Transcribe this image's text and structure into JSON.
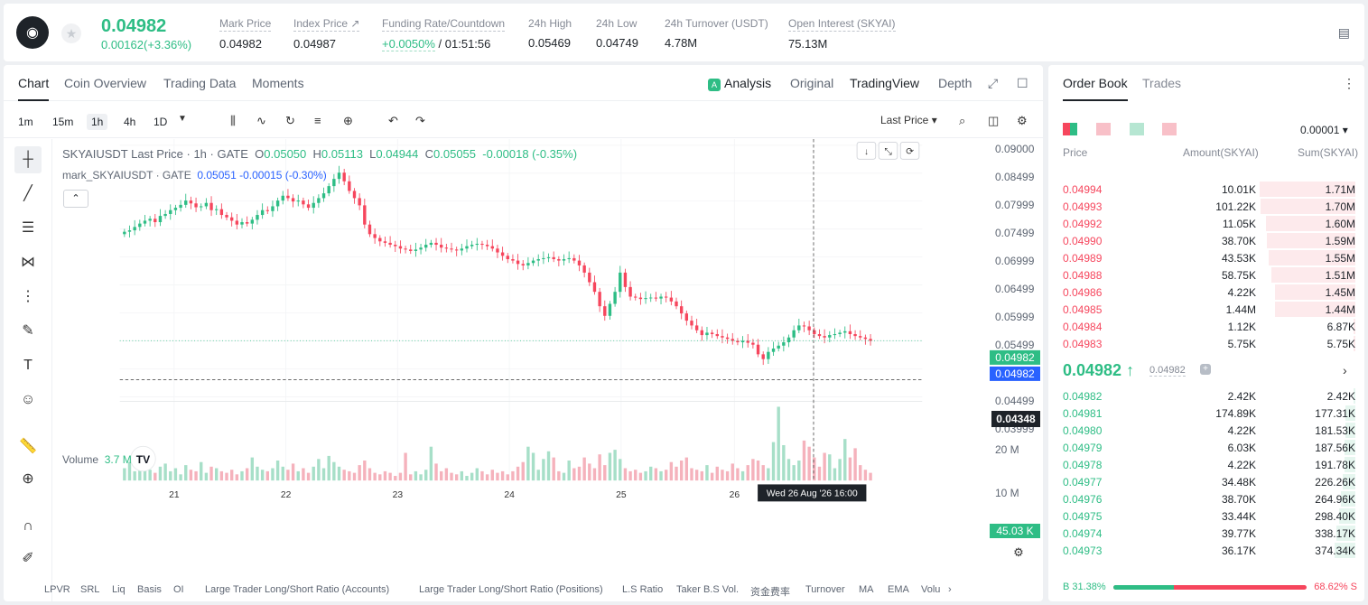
{
  "header": {
    "last_price": "0.04982",
    "change": "0.00162(+3.36%)",
    "stats": [
      {
        "label": "Mark Price",
        "value": "0.04982"
      },
      {
        "label": "Index Price ↗",
        "value": "0.04987"
      },
      {
        "label": "Funding Rate/Countdown",
        "rate": "+0.0050%",
        "countdown": "/ 01:51:56"
      },
      {
        "label": "24h High",
        "value": "0.05469"
      },
      {
        "label": "24h Low",
        "value": "0.04749"
      },
      {
        "label": "24h Turnover (USDT)",
        "value": "4.78M"
      },
      {
        "label": "Open Interest (SKYAI)",
        "value": "75.13M"
      }
    ]
  },
  "chart_tabs": [
    "Chart",
    "Coin Overview",
    "Trading Data",
    "Moments"
  ],
  "chart_modes": [
    "Analysis",
    "Original",
    "TradingView",
    "Depth"
  ],
  "timeframes": [
    "1m",
    "15m",
    "1h",
    "4h",
    "1D"
  ],
  "toolbar_right": "Last Price",
  "legend": {
    "symbol": "SKYAIUSDT Last Price · 1h · GATE",
    "o_label": "O",
    "o": "0.05050",
    "h_label": "H",
    "h": "0.05113",
    "l_label": "L",
    "l": "0.04944",
    "c_label": "C",
    "c": "0.05055",
    "chg": "-0.00018 (-0.35%)",
    "mark": "mark_SKYAIUSDT · GATE",
    "mark_vals": "0.05051 -0.00015 (-0.30%)"
  },
  "volume_legend": {
    "label": "Volume",
    "value": "3.7 M"
  },
  "price_axis": [
    "0.09000",
    "0.08499",
    "0.07999",
    "0.07499",
    "0.06999",
    "0.06499",
    "0.05999",
    "0.05499",
    "0.04499",
    "0.03999"
  ],
  "price_tags": {
    "last": "0.04982",
    "mark": "0.04982",
    "cursor": "0.04348",
    "vol": "45.03 K"
  },
  "vol_axis": [
    "20 M",
    "10 M"
  ],
  "dates": [
    "21",
    "22",
    "23",
    "24",
    "25",
    "26"
  ],
  "crosshair_date": "Wed 26 Aug '26   16:00",
  "indicators": [
    "LPVR",
    "SRL",
    "Liq",
    "Basis",
    "OI",
    "Large Trader Long/Short Ratio (Accounts)",
    "Large Trader Long/Short Ratio (Positions)",
    "L.S Ratio",
    "Taker B.S Vol.",
    "资金费率",
    "Turnover",
    "MA",
    "EMA",
    "Volu"
  ],
  "orderbook": {
    "tabs": [
      "Order Book",
      "Trades"
    ],
    "precision": "0.00001",
    "headers": [
      "Price",
      "Amount(SKYAI)",
      "Sum(SKYAI)"
    ],
    "asks": [
      {
        "p": "0.04994",
        "a": "10.01K",
        "s": "1.71M",
        "d": 1.71
      },
      {
        "p": "0.04993",
        "a": "101.22K",
        "s": "1.70M",
        "d": 1.7
      },
      {
        "p": "0.04992",
        "a": "11.05K",
        "s": "1.60M",
        "d": 1.6
      },
      {
        "p": "0.04990",
        "a": "38.70K",
        "s": "1.59M",
        "d": 1.59
      },
      {
        "p": "0.04989",
        "a": "43.53K",
        "s": "1.55M",
        "d": 1.55
      },
      {
        "p": "0.04988",
        "a": "58.75K",
        "s": "1.51M",
        "d": 1.51
      },
      {
        "p": "0.04986",
        "a": "4.22K",
        "s": "1.45M",
        "d": 1.45
      },
      {
        "p": "0.04985",
        "a": "1.44M",
        "s": "1.44M",
        "d": 1.44
      },
      {
        "p": "0.04984",
        "a": "1.12K",
        "s": "6.87K",
        "d": 0.00687
      },
      {
        "p": "0.04983",
        "a": "5.75K",
        "s": "5.75K",
        "d": 0.00575
      }
    ],
    "mid": "0.04982 ↑",
    "mid_mark": "0.04982",
    "bids": [
      {
        "p": "0.04982",
        "a": "2.42K",
        "s": "2.42K",
        "d": 0.00242
      },
      {
        "p": "0.04981",
        "a": "174.89K",
        "s": "177.31K",
        "d": 0.177
      },
      {
        "p": "0.04980",
        "a": "4.22K",
        "s": "181.53K",
        "d": 0.1815
      },
      {
        "p": "0.04979",
        "a": "6.03K",
        "s": "187.56K",
        "d": 0.1876
      },
      {
        "p": "0.04978",
        "a": "4.22K",
        "s": "191.78K",
        "d": 0.1918
      },
      {
        "p": "0.04977",
        "a": "34.48K",
        "s": "226.26K",
        "d": 0.2263
      },
      {
        "p": "0.04976",
        "a": "38.70K",
        "s": "264.96K",
        "d": 0.265
      },
      {
        "p": "0.04975",
        "a": "33.44K",
        "s": "298.40K",
        "d": 0.2984
      },
      {
        "p": "0.04974",
        "a": "39.77K",
        "s": "338.17K",
        "d": 0.3382
      },
      {
        "p": "0.04973",
        "a": "36.17K",
        "s": "374.34K",
        "d": 0.3743
      }
    ],
    "buy_pct": "B 31.38%",
    "sell_pct": "68.62% S",
    "buy_ratio": 0.3138
  },
  "colors": {
    "green": "#2ebd85",
    "red": "#f6465d",
    "blue": "#2962ff"
  },
  "candles": [
    0.0725,
    0.0728,
    0.0735,
    0.0742,
    0.0748,
    0.0752,
    0.0745,
    0.0758,
    0.0762,
    0.077,
    0.0775,
    0.0781,
    0.079,
    0.0784,
    0.0776,
    0.0778,
    0.0785,
    0.077,
    0.0772,
    0.076,
    0.0755,
    0.0748,
    0.074,
    0.0745,
    0.0742,
    0.075,
    0.076,
    0.077,
    0.0768,
    0.0778,
    0.079,
    0.08,
    0.0795,
    0.0788,
    0.079,
    0.0782,
    0.0775,
    0.0785,
    0.0795,
    0.0805,
    0.082,
    0.0835,
    0.0848,
    0.083,
    0.081,
    0.0795,
    0.078,
    0.074,
    0.072,
    0.0712,
    0.0705,
    0.0702,
    0.0698,
    0.0695,
    0.069,
    0.0688,
    0.0685,
    0.0688,
    0.0692,
    0.0698,
    0.0702,
    0.0698,
    0.0692,
    0.069,
    0.0688,
    0.0686,
    0.069,
    0.0695,
    0.0698,
    0.07,
    0.0698,
    0.0695,
    0.069,
    0.0682,
    0.0675,
    0.0668,
    0.0665,
    0.0658,
    0.0655,
    0.066,
    0.0665,
    0.0668,
    0.067,
    0.0672,
    0.0668,
    0.0665,
    0.0668,
    0.067,
    0.0665,
    0.0655,
    0.064,
    0.062,
    0.06,
    0.057,
    0.055,
    0.0575,
    0.06,
    0.064,
    0.061,
    0.059,
    0.0588,
    0.0585,
    0.0587,
    0.0588,
    0.0586,
    0.059,
    0.0588,
    0.058,
    0.057,
    0.0555,
    0.054,
    0.053,
    0.052,
    0.051,
    0.0515,
    0.0512,
    0.0508,
    0.0505,
    0.0502,
    0.0498,
    0.0495,
    0.0498,
    0.0494,
    0.049,
    0.047,
    0.046,
    0.0475,
    0.0482,
    0.0488,
    0.0495,
    0.0505,
    0.052,
    0.053,
    0.0528,
    0.052,
    0.0512,
    0.0508,
    0.0505,
    0.051,
    0.0512,
    0.0515,
    0.0518,
    0.0512,
    0.0508,
    0.0505,
    0.0502,
    0.0498
  ],
  "volumes": [
    0.8,
    1.2,
    0.6,
    0.9,
    1.4,
    0.7,
    0.5,
    0.9,
    1.1,
    0.6,
    0.8,
    0.4,
    1.0,
    0.7,
    0.6,
    1.2,
    0.5,
    0.9,
    0.8,
    0.6,
    0.5,
    0.7,
    0.4,
    0.6,
    0.8,
    1.5,
    0.9,
    0.7,
    0.6,
    0.8,
    1.3,
    0.9,
    0.7,
    1.1,
    0.6,
    0.8,
    0.5,
    0.9,
    1.4,
    0.8,
    1.6,
    1.2,
    0.9,
    0.7,
    0.6,
    0.5,
    1.0,
    1.3,
    0.8,
    0.5,
    0.4,
    0.6,
    0.5,
    0.3,
    0.5,
    1.8,
    0.4,
    0.6,
    0.4,
    0.7,
    2.2,
    1.1,
    0.6,
    0.8,
    0.5,
    0.4,
    0.6,
    0.3,
    0.5,
    0.8,
    0.6,
    0.4,
    0.7,
    0.5,
    0.6,
    0.4,
    0.6,
    0.9,
    1.2,
    2.2,
    1.8,
    0.7,
    1.4,
    1.9,
    1.5,
    0.6,
    0.5,
    1.3,
    0.8,
    0.9,
    1.5,
    1.1,
    0.8,
    1.7,
    1.0,
    1.8,
    2.0,
    1.4,
    0.8,
    0.6,
    0.7,
    0.5,
    0.6,
    0.9,
    0.8,
    0.6,
    0.7,
    1.2,
    0.9,
    1.3,
    1.5,
    0.8,
    0.7,
    0.6,
    1.0,
    0.5,
    0.9,
    0.7,
    0.6,
    1.1,
    0.8,
    0.6,
    1.0,
    1.4,
    1.3,
    1.0,
    0.8,
    2.5,
    4.8,
    2.3,
    1.4,
    1.0,
    1.3,
    2.6,
    2.2,
    1.5,
    0.9,
    1.8,
    1.7,
    0.8,
    1.4,
    2.7,
    1.5,
    2.1,
    1.0,
    0.7,
    0.5,
    0.3
  ]
}
